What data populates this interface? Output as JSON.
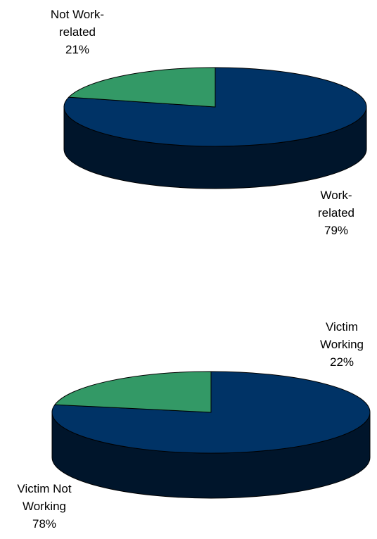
{
  "chart_data": [
    {
      "type": "pie",
      "view": "3d",
      "slices": [
        {
          "label_lines": [
            "Work-",
            "related",
            "79%"
          ],
          "value": 79,
          "color": "#003366"
        },
        {
          "label_lines": [
            "Not Work-",
            "related",
            "21%"
          ],
          "value": 21,
          "color": "#339966"
        }
      ]
    },
    {
      "type": "pie",
      "view": "3d",
      "slices": [
        {
          "label_lines": [
            "Victim Not",
            "Working",
            "78%"
          ],
          "value": 78,
          "color": "#003366"
        },
        {
          "label_lines": [
            "Victim",
            "Working",
            "22%"
          ],
          "value": 22,
          "color": "#339966"
        }
      ]
    }
  ]
}
